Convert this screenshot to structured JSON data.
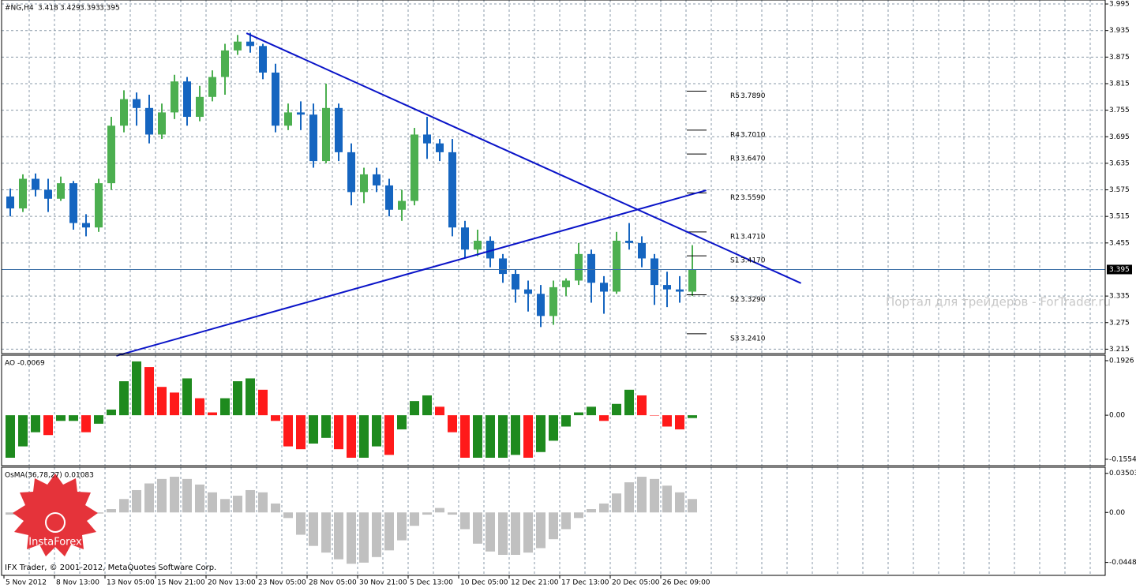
{
  "symbol": "#NG,H4",
  "quote": [
    3.418,
    3.429,
    3.393,
    3.395
  ],
  "watermark": "Портал для трейдеров - ForTrader.ru",
  "logo": "InstaForex",
  "copyright": "IFX Trader, © 2001-2012, MetaQuotes Software Corp.",
  "chart_data": [
    {
      "type": "candlestick",
      "categories": [
        "5 Nov 2012",
        null,
        null,
        null,
        "8 Nov 13:00",
        null,
        null,
        null,
        "13 Nov 05:00",
        null,
        null,
        null,
        "15 Nov 21:00",
        null,
        null,
        null,
        "20 Nov 13:00",
        null,
        null,
        null,
        "23 Nov 05:00",
        null,
        null,
        null,
        "28 Nov 05:00",
        null,
        null,
        null,
        "30 Nov 21:00",
        null,
        null,
        null,
        "5 Dec 13:00",
        null,
        null,
        null,
        "10 Dec 05:00",
        null,
        null,
        null,
        "12 Dec 21:00",
        null,
        null,
        null,
        "17 Dec 13:00",
        null,
        null,
        null,
        "20 Dec 05:00",
        null,
        null,
        null,
        "26 Dec 09:00",
        null,
        null
      ],
      "open": [
        3.56,
        3.533,
        3.6,
        3.575,
        3.555,
        3.59,
        3.5,
        3.49,
        3.59,
        3.72,
        3.78,
        3.76,
        3.7,
        3.75,
        3.82,
        3.74,
        3.785,
        3.83,
        3.89,
        3.91,
        3.9,
        3.84,
        3.72,
        3.75,
        3.745,
        3.64,
        3.76,
        3.66,
        3.57,
        3.61,
        3.585,
        3.53,
        3.55,
        3.7,
        3.68,
        3.66,
        3.49,
        3.44,
        3.46,
        3.42,
        3.385,
        3.35,
        3.34,
        3.29,
        3.355,
        3.37,
        3.43,
        3.365,
        3.345,
        3.46,
        3.455,
        3.42,
        3.36,
        3.35,
        3.345
      ],
      "high": [
        3.578,
        3.61,
        3.612,
        3.6,
        3.605,
        3.595,
        3.52,
        3.6,
        3.74,
        3.8,
        3.795,
        3.79,
        3.77,
        3.835,
        3.83,
        3.81,
        3.845,
        3.905,
        3.925,
        3.93,
        3.905,
        3.86,
        3.77,
        3.775,
        3.77,
        3.815,
        3.77,
        3.68,
        3.625,
        3.625,
        3.6,
        3.575,
        3.715,
        3.74,
        3.69,
        3.69,
        3.505,
        3.485,
        3.47,
        3.43,
        3.395,
        3.37,
        3.36,
        3.37,
        3.375,
        3.455,
        3.44,
        3.38,
        3.48,
        3.5,
        3.47,
        3.43,
        3.39,
        3.38,
        3.45
      ],
      "low": [
        3.515,
        3.525,
        3.56,
        3.525,
        3.55,
        3.485,
        3.47,
        3.48,
        3.575,
        3.705,
        3.72,
        3.68,
        3.69,
        3.735,
        3.72,
        3.73,
        3.775,
        3.79,
        3.88,
        3.885,
        3.825,
        3.705,
        3.71,
        3.71,
        3.625,
        3.635,
        3.64,
        3.54,
        3.545,
        3.57,
        3.515,
        3.505,
        3.54,
        3.645,
        3.64,
        3.47,
        3.42,
        3.425,
        3.4,
        3.365,
        3.32,
        3.3,
        3.265,
        3.27,
        3.335,
        3.36,
        3.32,
        3.295,
        3.34,
        3.44,
        3.4,
        3.315,
        3.31,
        3.32,
        3.335
      ],
      "close": [
        3.533,
        3.6,
        3.575,
        3.555,
        3.59,
        3.5,
        3.49,
        3.59,
        3.72,
        3.78,
        3.76,
        3.7,
        3.75,
        3.82,
        3.74,
        3.785,
        3.83,
        3.89,
        3.91,
        3.9,
        3.84,
        3.72,
        3.75,
        3.745,
        3.64,
        3.76,
        3.66,
        3.57,
        3.61,
        3.585,
        3.53,
        3.55,
        3.7,
        3.68,
        3.66,
        3.49,
        3.44,
        3.46,
        3.42,
        3.385,
        3.35,
        3.34,
        3.29,
        3.355,
        3.37,
        3.43,
        3.365,
        3.345,
        3.46,
        3.455,
        3.42,
        3.36,
        3.35,
        3.345,
        3.395
      ],
      "up_color": "#4caf50",
      "down_color": "#1565c0",
      "ylim": [
        3.205,
        4.004
      ],
      "yticks": [
        3.995,
        3.935,
        3.875,
        3.815,
        3.755,
        3.695,
        3.635,
        3.575,
        3.515,
        3.455,
        3.335,
        3.275,
        3.215
      ],
      "current_price": 3.395,
      "levels": [
        {
          "name": "R5",
          "value": 3.789,
          "label": "3.7890"
        },
        {
          "name": "R4",
          "value": 3.701,
          "label": "3.7010"
        },
        {
          "name": "R3",
          "value": 3.647,
          "label": "3.6470"
        },
        {
          "name": "R2",
          "value": 3.559,
          "label": "3.5590"
        },
        {
          "name": "R1",
          "value": 3.471,
          "label": "3.4710"
        },
        {
          "name": "S1",
          "value": 3.417,
          "label": "3.4170"
        },
        {
          "name": "S2",
          "value": 3.329,
          "label": "3.3290"
        },
        {
          "name": "S3",
          "value": 3.241,
          "label": "3.2410"
        }
      ],
      "trendlines": [
        {
          "x": [
            18.7,
            62.6
          ],
          "y": [
            3.929,
            3.364
          ],
          "color": "#0a14c8"
        },
        {
          "x": [
            8.4,
            55.1
          ],
          "y": [
            3.2,
            3.574
          ],
          "color": "#0a14c8"
        }
      ],
      "grid": true
    },
    {
      "type": "bar",
      "title": "AO -0.0069",
      "values": [
        -0.15,
        -0.11,
        -0.06,
        -0.07,
        -0.02,
        -0.02,
        -0.06,
        -0.03,
        0.02,
        0.12,
        0.19,
        0.17,
        0.1,
        0.08,
        0.13,
        0.06,
        0.01,
        0.06,
        0.12,
        0.13,
        0.09,
        -0.02,
        -0.11,
        -0.12,
        -0.1,
        -0.08,
        -0.12,
        -0.15,
        -0.15,
        -0.11,
        -0.14,
        -0.05,
        0.05,
        0.07,
        0.03,
        -0.06,
        -0.15,
        -0.15,
        -0.15,
        -0.15,
        -0.14,
        -0.15,
        -0.13,
        -0.09,
        -0.04,
        0.01,
        0.03,
        -0.02,
        0.04,
        0.09,
        0.07,
        0.0,
        -0.04,
        -0.05,
        -0.01
      ],
      "up_color": "#1e8a1e",
      "down_color": "#ff1a1a",
      "ylim": [
        -0.178,
        0.212
      ],
      "yticks": [
        0.1926,
        {
          "value": 0,
          "label": "0.00"
        },
        -0.1554
      ]
    },
    {
      "type": "bar",
      "title": "OsMA(36,78,27) 0.01083",
      "values": [
        -0.002,
        -0.003,
        -0.003,
        -0.002,
        -0.001,
        0.0,
        -0.002,
        -0.001,
        0.003,
        0.012,
        0.02,
        0.026,
        0.03,
        0.032,
        0.03,
        0.025,
        0.018,
        0.012,
        0.015,
        0.02,
        0.018,
        0.008,
        -0.005,
        -0.02,
        -0.03,
        -0.036,
        -0.042,
        -0.046,
        -0.045,
        -0.04,
        -0.034,
        -0.025,
        -0.012,
        -0.002,
        0.004,
        -0.002,
        -0.015,
        -0.028,
        -0.035,
        -0.038,
        -0.038,
        -0.036,
        -0.032,
        -0.024,
        -0.015,
        -0.005,
        0.003,
        0.008,
        0.017,
        0.027,
        0.032,
        0.03,
        0.024,
        0.018,
        0.012
      ],
      "color": "#c0c0c0",
      "ylim": [
        -0.0564,
        0.0405
      ],
      "yticks": [
        0.03503,
        {
          "value": 0,
          "label": "0.00"
        },
        -0.04481
      ]
    }
  ]
}
